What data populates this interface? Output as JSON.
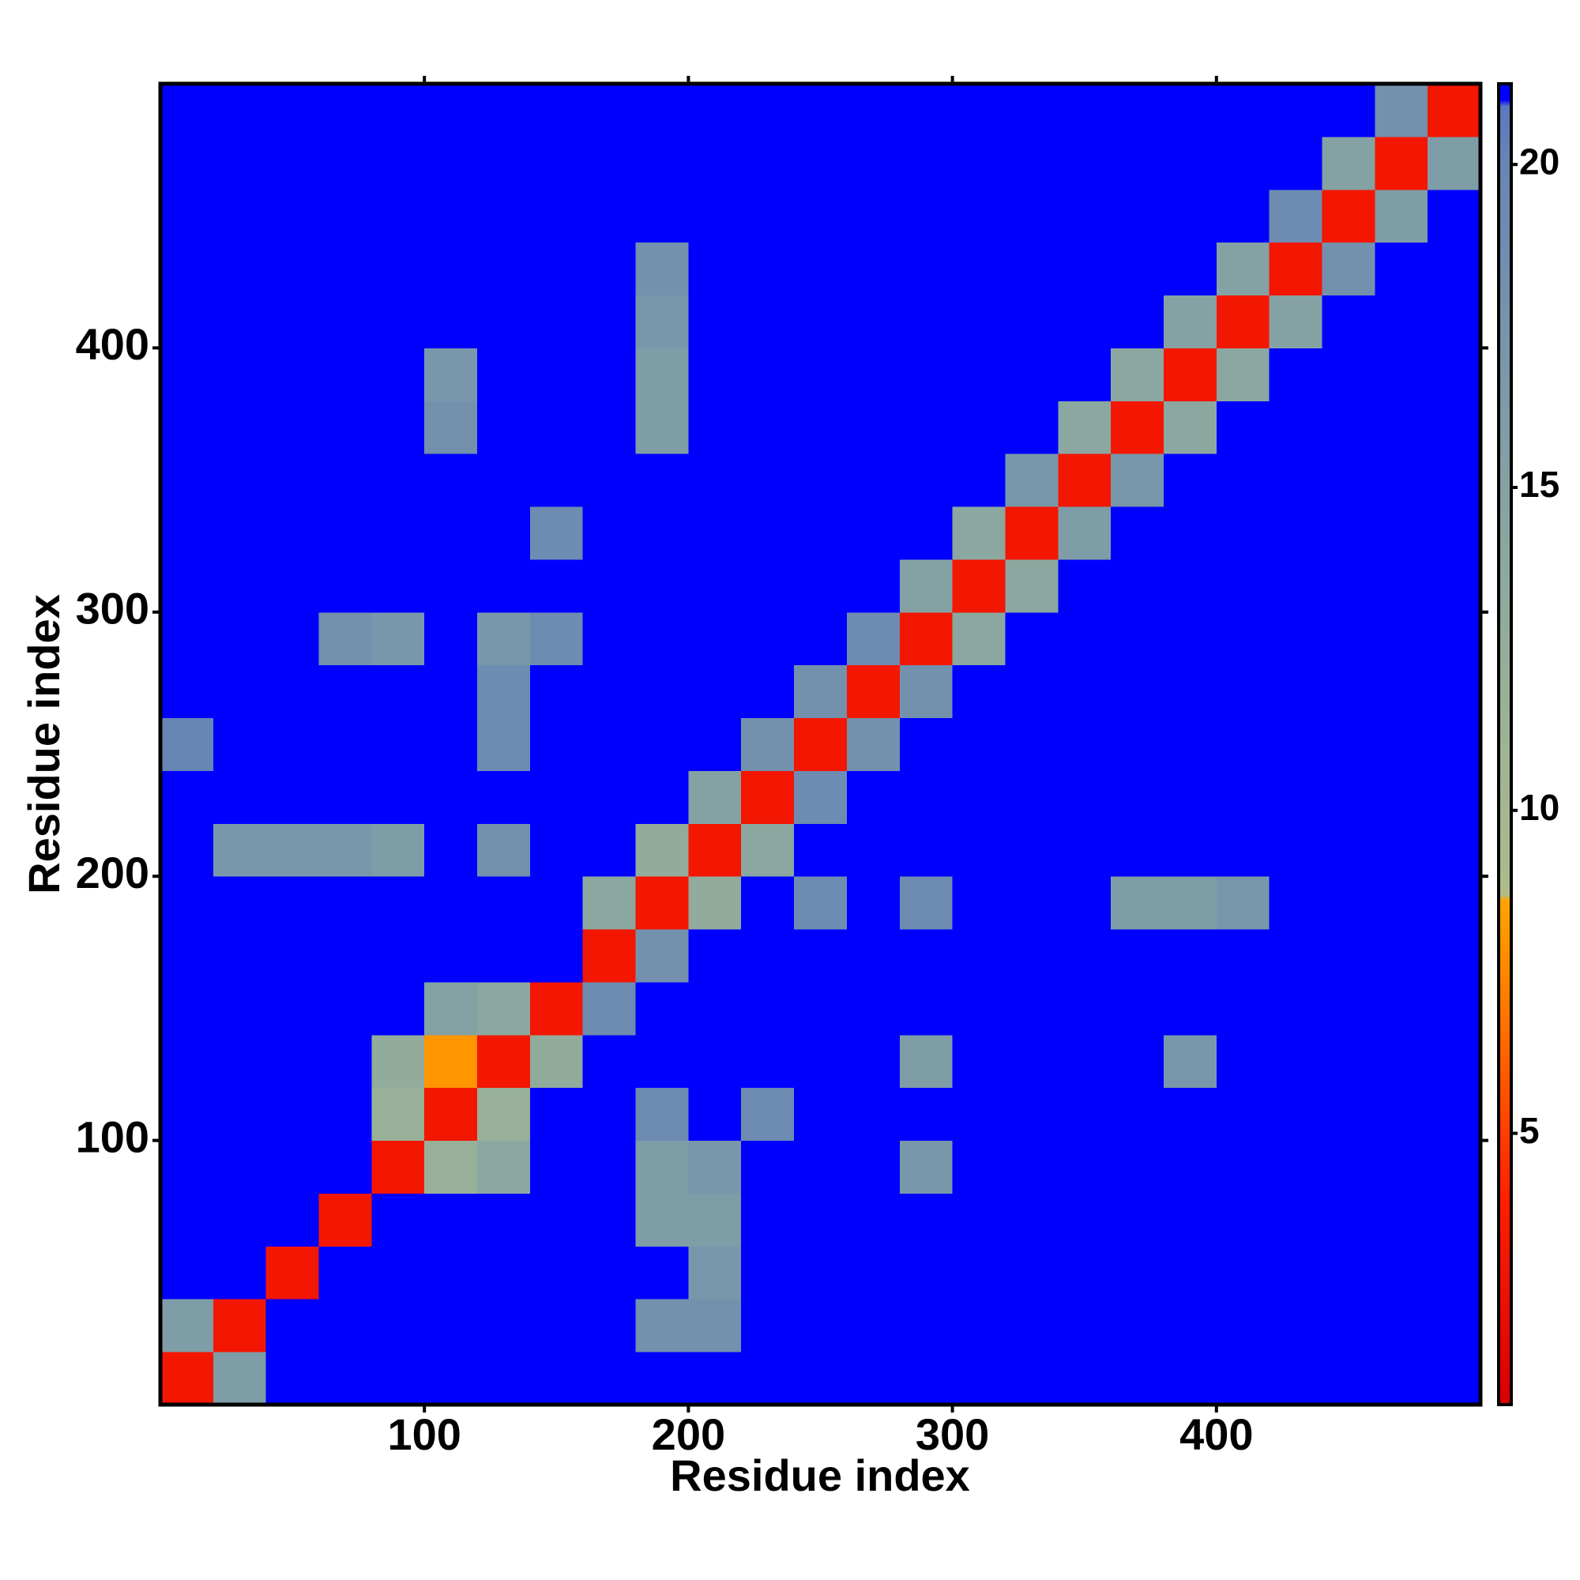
{
  "chart_data": {
    "type": "heatmap",
    "xlabel": "Residue index",
    "ylabel": "Residue index",
    "xlim": [
      0,
      500
    ],
    "ylim": [
      0,
      500
    ],
    "xticks": [
      100,
      200,
      300,
      400
    ],
    "yticks": [
      100,
      200,
      300,
      400
    ],
    "bin_edges": [
      0,
      20,
      40,
      60,
      80,
      100,
      120,
      140,
      160,
      180,
      200,
      220,
      240,
      260,
      280,
      300,
      320,
      340,
      360,
      380,
      400,
      420,
      440,
      460,
      480,
      500
    ],
    "values": [
      [
        3,
        16,
        21,
        21,
        21,
        21,
        21,
        21,
        21,
        21,
        21,
        21,
        21,
        21,
        21,
        21,
        21,
        21,
        21,
        21,
        21,
        21,
        21,
        21,
        21
      ],
      [
        16,
        3,
        21,
        21,
        21,
        21,
        21,
        21,
        21,
        18,
        18,
        21,
        21,
        21,
        21,
        21,
        21,
        21,
        21,
        21,
        21,
        21,
        21,
        21,
        21
      ],
      [
        21,
        21,
        3,
        21,
        21,
        21,
        21,
        21,
        21,
        21,
        17,
        21,
        21,
        21,
        21,
        21,
        21,
        21,
        21,
        21,
        21,
        21,
        21,
        21,
        21
      ],
      [
        21,
        21,
        21,
        3,
        21,
        21,
        21,
        21,
        21,
        16,
        16,
        21,
        21,
        21,
        21,
        21,
        21,
        21,
        21,
        21,
        21,
        21,
        21,
        21,
        21
      ],
      [
        21,
        21,
        21,
        21,
        3,
        12,
        14,
        21,
        21,
        16,
        17,
        21,
        21,
        21,
        17,
        21,
        21,
        21,
        21,
        21,
        21,
        21,
        21,
        21,
        21
      ],
      [
        21,
        21,
        21,
        21,
        12,
        3,
        12,
        21,
        21,
        19,
        21,
        19,
        21,
        21,
        21,
        21,
        21,
        21,
        21,
        21,
        21,
        21,
        21,
        21,
        21
      ],
      [
        21,
        21,
        21,
        21,
        13,
        8,
        3,
        13,
        21,
        21,
        21,
        21,
        21,
        21,
        16,
        21,
        21,
        21,
        21,
        17,
        21,
        21,
        21,
        21,
        21
      ],
      [
        21,
        21,
        21,
        21,
        21,
        15,
        14,
        3,
        19,
        21,
        21,
        21,
        21,
        21,
        21,
        21,
        21,
        21,
        21,
        21,
        21,
        21,
        21,
        21,
        21
      ],
      [
        21,
        21,
        21,
        21,
        21,
        21,
        21,
        21,
        3,
        18,
        21,
        21,
        21,
        21,
        21,
        21,
        21,
        21,
        21,
        21,
        21,
        21,
        21,
        21,
        21
      ],
      [
        21,
        21,
        21,
        21,
        21,
        21,
        21,
        21,
        14,
        3,
        13,
        21,
        19,
        21,
        19,
        21,
        21,
        21,
        16,
        16,
        17,
        21,
        21,
        21,
        21
      ],
      [
        21,
        17,
        17,
        17,
        16,
        21,
        18,
        21,
        21,
        13,
        3,
        14,
        21,
        21,
        21,
        21,
        21,
        21,
        21,
        21,
        21,
        21,
        21,
        21,
        21
      ],
      [
        21,
        21,
        21,
        21,
        21,
        21,
        21,
        21,
        21,
        21,
        15,
        3,
        19,
        21,
        21,
        21,
        21,
        21,
        21,
        21,
        21,
        21,
        21,
        21,
        21
      ],
      [
        20,
        21,
        21,
        21,
        21,
        21,
        19,
        21,
        21,
        21,
        21,
        18,
        3,
        18,
        21,
        21,
        21,
        21,
        21,
        21,
        21,
        21,
        21,
        21,
        21
      ],
      [
        21,
        21,
        21,
        21,
        21,
        21,
        19,
        21,
        21,
        21,
        21,
        21,
        18,
        3,
        18,
        21,
        21,
        21,
        21,
        21,
        21,
        21,
        21,
        21,
        21
      ],
      [
        21,
        21,
        21,
        18,
        17,
        21,
        17,
        19,
        21,
        21,
        21,
        21,
        21,
        19,
        3,
        14,
        21,
        21,
        21,
        21,
        21,
        21,
        21,
        21,
        21
      ],
      [
        21,
        21,
        21,
        21,
        21,
        21,
        21,
        21,
        21,
        21,
        21,
        21,
        21,
        21,
        15,
        3,
        14,
        21,
        21,
        21,
        21,
        21,
        21,
        21,
        21
      ],
      [
        21,
        21,
        21,
        21,
        21,
        21,
        21,
        19,
        21,
        21,
        21,
        21,
        21,
        21,
        21,
        14,
        3,
        16,
        21,
        21,
        21,
        21,
        21,
        21,
        21
      ],
      [
        21,
        21,
        21,
        21,
        21,
        21,
        21,
        21,
        21,
        21,
        21,
        21,
        21,
        21,
        21,
        21,
        17,
        3,
        17,
        21,
        21,
        21,
        21,
        21,
        21
      ],
      [
        21,
        21,
        21,
        21,
        21,
        18,
        21,
        21,
        21,
        16,
        21,
        21,
        21,
        21,
        21,
        21,
        21,
        14,
        3,
        14,
        21,
        21,
        21,
        21,
        21
      ],
      [
        21,
        21,
        21,
        21,
        21,
        17,
        21,
        21,
        21,
        16,
        21,
        21,
        21,
        21,
        21,
        21,
        21,
        21,
        14,
        3,
        14,
        21,
        21,
        21,
        21
      ],
      [
        21,
        21,
        21,
        21,
        21,
        21,
        21,
        21,
        21,
        17,
        21,
        21,
        21,
        21,
        21,
        21,
        21,
        21,
        21,
        15,
        3,
        15,
        21,
        21,
        21
      ],
      [
        21,
        21,
        21,
        21,
        21,
        21,
        21,
        21,
        21,
        18,
        21,
        21,
        21,
        21,
        21,
        21,
        21,
        21,
        21,
        21,
        15,
        3,
        18,
        21,
        21
      ],
      [
        21,
        21,
        21,
        21,
        21,
        21,
        21,
        21,
        21,
        21,
        21,
        21,
        21,
        21,
        21,
        21,
        21,
        21,
        21,
        21,
        21,
        19,
        3,
        16,
        21
      ],
      [
        21,
        21,
        21,
        21,
        21,
        21,
        21,
        21,
        21,
        21,
        21,
        21,
        21,
        21,
        21,
        21,
        21,
        21,
        21,
        21,
        21,
        21,
        15,
        3,
        16
      ],
      [
        21,
        21,
        21,
        21,
        21,
        21,
        21,
        21,
        21,
        21,
        21,
        21,
        21,
        21,
        21,
        21,
        21,
        21,
        21,
        21,
        21,
        21,
        21,
        18,
        3
      ]
    ],
    "colorscale": [
      [
        0.8,
        "#d80000"
      ],
      [
        4,
        "#ff2000"
      ],
      [
        7,
        "#ff7a00"
      ],
      [
        8.6,
        "#ffa500"
      ],
      [
        8.7,
        "#aebc8a"
      ],
      [
        14,
        "#8aa8a0"
      ],
      [
        20,
        "#6886b4"
      ],
      [
        20.9,
        "#5a78c0"
      ],
      [
        21,
        "#0000ff"
      ],
      [
        21.25,
        "#0000ff"
      ]
    ],
    "clim": [
      0.8,
      21.25
    ],
    "cticks": [
      5,
      10,
      15,
      20
    ]
  }
}
